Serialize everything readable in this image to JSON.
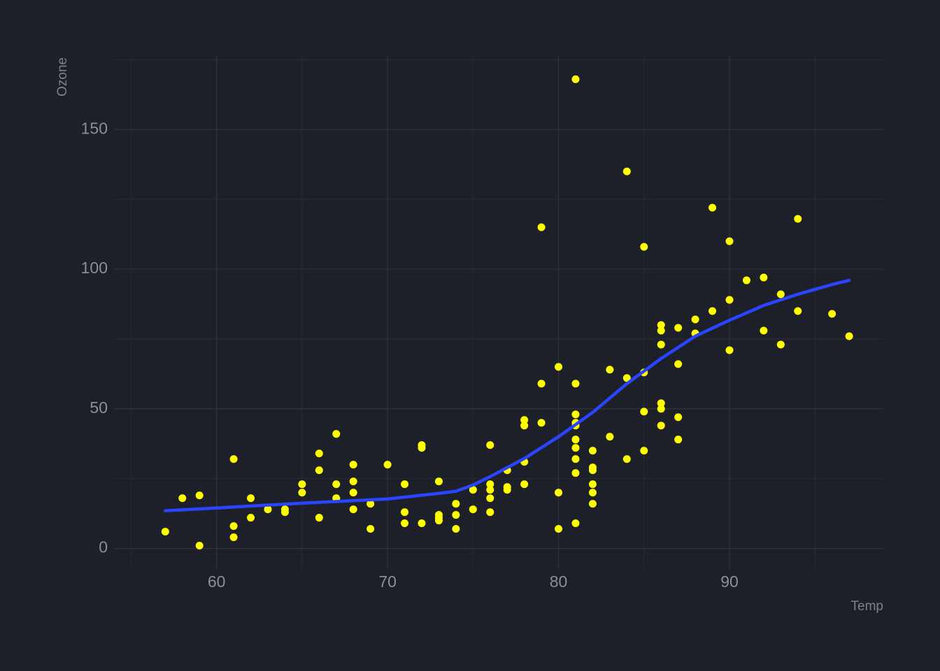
{
  "chart_data": {
    "type": "scatter",
    "x_label": "Temp",
    "y_label": "Ozone",
    "color": "#ffff00",
    "x": [
      57,
      58,
      59,
      59,
      61,
      61,
      61,
      62,
      62,
      63,
      64,
      64,
      65,
      65,
      66,
      66,
      66,
      67,
      67,
      67,
      68,
      68,
      68,
      68,
      69,
      69,
      70,
      71,
      71,
      71,
      72,
      72,
      72,
      73,
      73,
      73,
      73,
      74,
      74,
      74,
      75,
      75,
      76,
      76,
      76,
      76,
      76,
      77,
      77,
      77,
      78,
      78,
      78,
      78,
      79,
      79,
      79,
      80,
      80,
      80,
      81,
      81,
      81,
      81,
      81,
      81,
      81,
      81,
      81,
      81,
      82,
      82,
      82,
      82,
      82,
      82,
      83,
      83,
      84,
      84,
      84,
      85,
      85,
      85,
      85,
      86,
      86,
      86,
      86,
      86,
      86,
      87,
      87,
      87,
      87,
      88,
      88,
      89,
      89,
      90,
      90,
      90,
      91,
      92,
      92,
      93,
      93,
      94,
      94,
      96,
      97
    ],
    "values": [
      6,
      18,
      19,
      1,
      32,
      8,
      4,
      18,
      11,
      14,
      14,
      13,
      23,
      20,
      34,
      28,
      11,
      41,
      23,
      18,
      30,
      24,
      20,
      14,
      16,
      7,
      30,
      23,
      13,
      9,
      37,
      36,
      9,
      24,
      12,
      11,
      10,
      16,
      12,
      7,
      21,
      14,
      37,
      23,
      21,
      18,
      13,
      28,
      22,
      21,
      46,
      44,
      31,
      23,
      115,
      59,
      45,
      65,
      20,
      7,
      168,
      59,
      48,
      45,
      44,
      39,
      36,
      32,
      27,
      9,
      35,
      29,
      28,
      23,
      20,
      16,
      64,
      40,
      135,
      61,
      32,
      108,
      63,
      49,
      35,
      80,
      78,
      73,
      52,
      50,
      44,
      79,
      66,
      47,
      39,
      82,
      77,
      122,
      85,
      110,
      89,
      71,
      96,
      97,
      78,
      91,
      73,
      118,
      85,
      84,
      76
    ],
    "trend": {
      "type": "line",
      "color": "#2a45ff",
      "x": [
        57,
        60,
        65,
        70,
        73,
        74,
        75,
        76,
        78,
        80,
        82,
        84,
        86,
        88,
        90,
        92,
        94,
        96,
        97
      ],
      "values": [
        13.5,
        14.5,
        16.2,
        17.7,
        19.7,
        20.5,
        22.7,
        25.7,
        32.2,
        40,
        48.7,
        59,
        68,
        76,
        81.7,
        87,
        91,
        94.5,
        96
      ]
    },
    "xlim": [
      54,
      99
    ],
    "ylim": [
      -7.35,
      176.35
    ],
    "xticks": [
      60,
      70,
      80,
      90
    ],
    "yticks": [
      0,
      50,
      100,
      150
    ],
    "x_minor_grid": [
      55,
      65,
      75,
      85,
      95
    ],
    "y_minor_grid": [
      25,
      75,
      125,
      175
    ],
    "grid": true
  }
}
